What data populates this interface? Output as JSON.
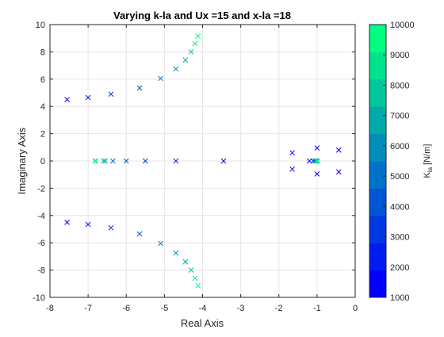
{
  "chart_data": {
    "type": "scatter",
    "title": "Varying k-la and Ux =15 and x-la =18",
    "xlabel": "Real Axis",
    "ylabel": "Imaginary Axis",
    "xlim": [
      -8,
      0
    ],
    "ylim": [
      -10,
      10
    ],
    "x_ticks": [
      -8,
      -7,
      -6,
      -5,
      -4,
      -3,
      -2,
      -1,
      0
    ],
    "y_ticks": [
      -10,
      -8,
      -6,
      -4,
      -2,
      0,
      2,
      4,
      6,
      8,
      10
    ],
    "grid": true,
    "marker": "x",
    "colorbar": {
      "label_main": "K",
      "label_sub": "la",
      "label_unit": " [N/m]",
      "range": [
        1000,
        10000
      ],
      "ticks": [
        1000,
        2000,
        3000,
        4000,
        5000,
        6000,
        7000,
        8000,
        9000,
        10000
      ],
      "colormap": "winter",
      "levels": 10,
      "color_low": "#0000ff",
      "color_high": "#00ff80"
    },
    "points": [
      {
        "x": -7.55,
        "y": 4.5,
        "k": 1000
      },
      {
        "x": -7.55,
        "y": -4.5,
        "k": 1000
      },
      {
        "x": -7.0,
        "y": 4.65,
        "k": 2000
      },
      {
        "x": -7.0,
        "y": -4.65,
        "k": 2000
      },
      {
        "x": -6.4,
        "y": 4.9,
        "k": 3000
      },
      {
        "x": -6.4,
        "y": -4.9,
        "k": 3000
      },
      {
        "x": -5.65,
        "y": 5.35,
        "k": 4000
      },
      {
        "x": -5.65,
        "y": -5.35,
        "k": 4000
      },
      {
        "x": -5.1,
        "y": 6.05,
        "k": 5000
      },
      {
        "x": -5.1,
        "y": -6.05,
        "k": 5000
      },
      {
        "x": -4.7,
        "y": 6.75,
        "k": 6000
      },
      {
        "x": -4.7,
        "y": -6.75,
        "k": 6000
      },
      {
        "x": -4.45,
        "y": 7.4,
        "k": 7000
      },
      {
        "x": -4.45,
        "y": -7.4,
        "k": 7000
      },
      {
        "x": -4.3,
        "y": 8.0,
        "k": 8000
      },
      {
        "x": -4.3,
        "y": -8.0,
        "k": 8000
      },
      {
        "x": -4.2,
        "y": 8.6,
        "k": 9000
      },
      {
        "x": -4.2,
        "y": -8.6,
        "k": 9000
      },
      {
        "x": -4.12,
        "y": 9.15,
        "k": 10000
      },
      {
        "x": -4.12,
        "y": -9.15,
        "k": 10000
      },
      {
        "x": -3.45,
        "y": 0,
        "k": 1000
      },
      {
        "x": -4.7,
        "y": 0,
        "k": 2000
      },
      {
        "x": -5.5,
        "y": 0,
        "k": 3000
      },
      {
        "x": -6.0,
        "y": 0,
        "k": 4000
      },
      {
        "x": -6.35,
        "y": 0,
        "k": 5000
      },
      {
        "x": -6.55,
        "y": 0,
        "k": 7000
      },
      {
        "x": -6.6,
        "y": 0,
        "k": 8000
      },
      {
        "x": -6.8,
        "y": 0,
        "k": 9000
      },
      {
        "x": -6.82,
        "y": 0,
        "k": 10000
      },
      {
        "x": -1.65,
        "y": 0.6,
        "k": 1000
      },
      {
        "x": -1.65,
        "y": -0.6,
        "k": 1000
      },
      {
        "x": -0.43,
        "y": 0.8,
        "k": 1000
      },
      {
        "x": -0.43,
        "y": -0.8,
        "k": 1000
      },
      {
        "x": -1.0,
        "y": 0.95,
        "k": 1000
      },
      {
        "x": -1.0,
        "y": -0.95,
        "k": 1000
      },
      {
        "x": -1.2,
        "y": 0,
        "k": 1000
      },
      {
        "x": -1.1,
        "y": 0,
        "k": 3000
      },
      {
        "x": -1.05,
        "y": 0,
        "k": 5000
      },
      {
        "x": -1.02,
        "y": 0,
        "k": 7000
      },
      {
        "x": -1.0,
        "y": 0,
        "k": 9000
      },
      {
        "x": -0.98,
        "y": 0,
        "k": 10000
      }
    ]
  }
}
